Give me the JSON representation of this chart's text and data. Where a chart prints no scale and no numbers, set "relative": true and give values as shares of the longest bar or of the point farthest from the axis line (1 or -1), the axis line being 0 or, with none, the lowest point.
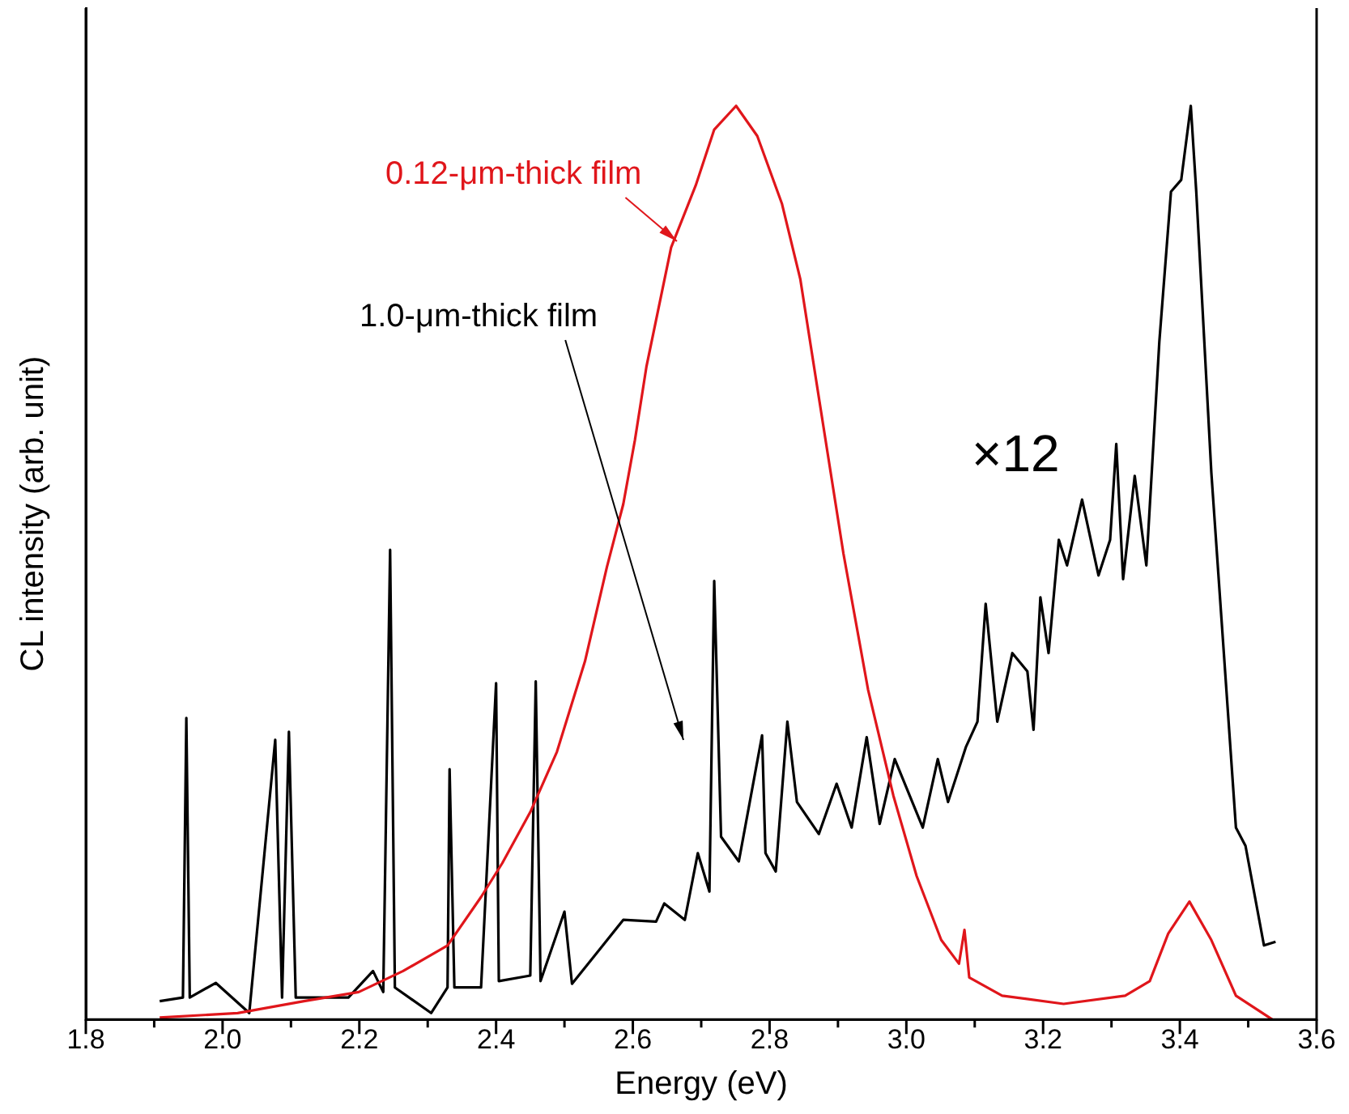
{
  "chart_data": {
    "type": "line",
    "xlabel": "Energy (eV)",
    "ylabel": "CL intensity (arb. unit)",
    "relative": true,
    "legend": false,
    "grid": false,
    "xlim": [
      1.8,
      3.6
    ],
    "xticks": [
      1.8,
      {
        "value": 1.9,
        "label": null
      },
      {
        "value": 2.0,
        "label": "2.0"
      },
      {
        "value": 2.1,
        "label": null
      },
      2.2,
      {
        "value": 2.3,
        "label": null
      },
      2.4,
      {
        "value": 2.5,
        "label": null
      },
      2.6,
      {
        "value": 2.7,
        "label": null
      },
      2.8,
      {
        "value": 2.9,
        "label": null
      },
      {
        "value": 3.0,
        "label": "3.0"
      },
      {
        "value": 3.1,
        "label": null
      },
      3.2,
      {
        "value": 3.3,
        "label": null
      },
      3.4,
      {
        "value": 3.5,
        "label": null
      },
      3.6
    ],
    "annotations": [
      "×12"
    ],
    "series": [
      {
        "name": "0.12-μm-thick film",
        "color": "#e0161b",
        "x": [
          1.908,
          2.022,
          2.119,
          2.199,
          2.264,
          2.329,
          2.378,
          2.409,
          2.45,
          2.489,
          2.53,
          2.562,
          2.586,
          2.603,
          2.62,
          2.656,
          2.692,
          2.719,
          2.751,
          2.782,
          2.818,
          2.845,
          2.872,
          2.908,
          2.944,
          2.981,
          3.015,
          3.051,
          3.077,
          3.085,
          3.092,
          3.14,
          3.23,
          3.32,
          3.356,
          3.383,
          3.414,
          3.446,
          3.482,
          3.535
        ],
        "values": [
          0.002,
          0.007,
          0.02,
          0.03,
          0.053,
          0.081,
          0.134,
          0.171,
          0.227,
          0.293,
          0.392,
          0.495,
          0.564,
          0.634,
          0.715,
          0.845,
          0.913,
          0.974,
          1.0,
          0.967,
          0.893,
          0.81,
          0.681,
          0.51,
          0.361,
          0.245,
          0.157,
          0.087,
          0.061,
          0.098,
          0.046,
          0.026,
          0.017,
          0.026,
          0.042,
          0.094,
          0.129,
          0.087,
          0.026,
          0.0
        ]
      },
      {
        "name": "1.0-μm-thick film",
        "color": "#000000",
        "x": [
          1.908,
          1.942,
          1.947,
          1.952,
          1.99,
          2.039,
          2.077,
          2.087,
          2.097,
          2.107,
          2.184,
          2.22,
          2.235,
          2.245,
          2.252,
          2.305,
          2.329,
          2.332,
          2.339,
          2.378,
          2.4,
          2.404,
          2.45,
          2.458,
          2.465,
          2.5,
          2.511,
          2.554,
          2.586,
          2.634,
          2.646,
          2.676,
          2.695,
          2.712,
          2.719,
          2.729,
          2.755,
          2.789,
          2.794,
          2.809,
          2.826,
          2.84,
          2.872,
          2.898,
          2.92,
          2.942,
          2.961,
          2.983,
          3.024,
          3.046,
          3.061,
          3.087,
          3.104,
          3.116,
          3.133,
          3.155,
          3.177,
          3.186,
          3.196,
          3.208,
          3.223,
          3.235,
          3.257,
          3.281,
          3.298,
          3.307,
          3.317,
          3.334,
          3.351,
          3.37,
          3.387,
          3.402,
          3.416,
          3.424,
          3.446,
          3.482,
          3.496,
          3.523,
          3.54
        ],
        "values": [
          0.02,
          0.024,
          0.33,
          0.024,
          0.04,
          0.007,
          0.306,
          0.024,
          0.315,
          0.024,
          0.024,
          0.053,
          0.03,
          0.514,
          0.035,
          0.007,
          0.035,
          0.274,
          0.035,
          0.035,
          0.368,
          0.042,
          0.048,
          0.37,
          0.042,
          0.118,
          0.039,
          0.079,
          0.109,
          0.107,
          0.127,
          0.109,
          0.182,
          0.14,
          0.48,
          0.2,
          0.173,
          0.311,
          0.182,
          0.162,
          0.326,
          0.238,
          0.203,
          0.258,
          0.21,
          0.309,
          0.214,
          0.285,
          0.21,
          0.285,
          0.238,
          0.298,
          0.326,
          0.455,
          0.326,
          0.401,
          0.381,
          0.317,
          0.462,
          0.401,
          0.525,
          0.497,
          0.569,
          0.486,
          0.525,
          0.63,
          0.482,
          0.595,
          0.497,
          0.742,
          0.906,
          0.919,
          1.0,
          0.906,
          0.599,
          0.21,
          0.19,
          0.081,
          0.085
        ]
      }
    ]
  }
}
